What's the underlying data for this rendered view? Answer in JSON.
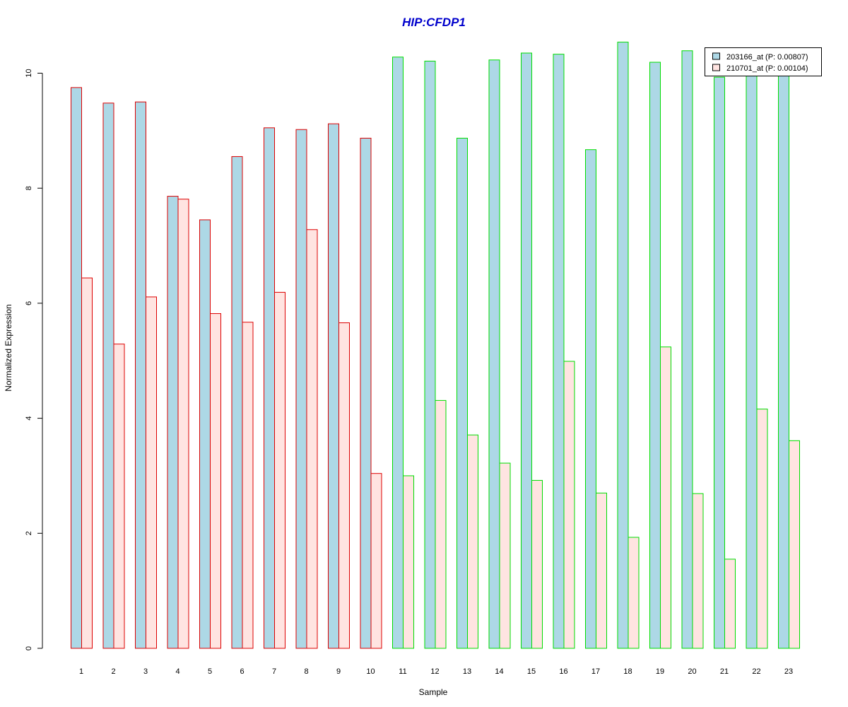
{
  "chart_data": {
    "type": "bar",
    "title": "HIP:CFDP1",
    "xlabel": "Sample",
    "ylabel": "Normalized Expression",
    "categories": [
      "1",
      "2",
      "3",
      "4",
      "5",
      "6",
      "7",
      "8",
      "9",
      "10",
      "11",
      "12",
      "13",
      "14",
      "15",
      "16",
      "17",
      "18",
      "19",
      "20",
      "21",
      "22",
      "23"
    ],
    "yticks": [
      0,
      2,
      4,
      6,
      8,
      10
    ],
    "ylim": [
      0,
      10
    ],
    "grid": false,
    "legend_position": "top-right",
    "series": [
      {
        "name": "203166_at (P: 0.00807)",
        "fill": "#add8e6",
        "values": [
          9.75,
          9.48,
          9.5,
          7.86,
          7.45,
          8.55,
          9.05,
          9.02,
          9.12,
          8.87,
          10.28,
          10.21,
          8.87,
          10.23,
          10.35,
          10.33,
          8.67,
          10.54,
          10.19,
          10.39,
          9.93,
          9.95,
          10.0
        ]
      },
      {
        "name": "210701_at (P: 0.00104)",
        "fill": "#ffe4e1",
        "values": [
          6.44,
          5.29,
          6.11,
          7.81,
          5.82,
          5.67,
          6.19,
          7.28,
          5.66,
          3.04,
          3.0,
          4.31,
          3.71,
          3.22,
          2.92,
          4.99,
          2.7,
          1.93,
          5.24,
          2.69,
          1.55,
          4.16,
          3.61
        ]
      }
    ],
    "sample_groups": [
      {
        "from": 1,
        "to": 10,
        "border_color": "#dd0000"
      },
      {
        "from": 11,
        "to": 23,
        "border_color": "#00dd00"
      }
    ],
    "colors": {
      "title": "#0000cc",
      "axis": "#000000"
    }
  }
}
